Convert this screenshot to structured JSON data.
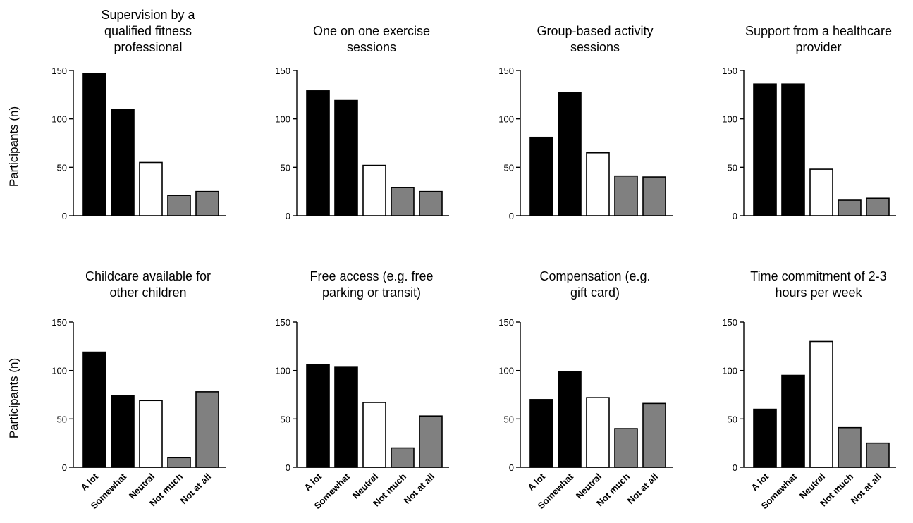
{
  "ylabel": "Participants (n)",
  "categories": [
    "A lot",
    "Somewhat",
    "Neutral",
    "Not much",
    "Not at all"
  ],
  "colors": {
    "A lot": "#000000",
    "Somewhat": "#000000",
    "Neutral": "#ffffff",
    "Not much": "#808080",
    "Not at all": "#808080"
  },
  "chart_data": [
    {
      "type": "bar",
      "title": "Supervision by a qualified fitness professional",
      "title_lines": [
        "Supervision by a",
        "qualified fitness",
        "professional"
      ],
      "categories": [
        "A lot",
        "Somewhat",
        "Neutral",
        "Not much",
        "Not at all"
      ],
      "values": [
        147,
        110,
        55,
        21,
        25
      ],
      "ylim": [
        0,
        150
      ],
      "yticks": [
        0,
        50,
        100,
        150
      ]
    },
    {
      "type": "bar",
      "title": "One on one exercise sessions",
      "title_lines": [
        "One on one exercise",
        "sessions"
      ],
      "categories": [
        "A lot",
        "Somewhat",
        "Neutral",
        "Not much",
        "Not at all"
      ],
      "values": [
        129,
        119,
        52,
        29,
        25
      ],
      "ylim": [
        0,
        150
      ],
      "yticks": [
        0,
        50,
        100,
        150
      ]
    },
    {
      "type": "bar",
      "title": "Group-based activity sessions",
      "title_lines": [
        "Group-based activity",
        "sessions"
      ],
      "categories": [
        "A lot",
        "Somewhat",
        "Neutral",
        "Not much",
        "Not at all"
      ],
      "values": [
        81,
        127,
        65,
        41,
        40
      ],
      "ylim": [
        0,
        150
      ],
      "yticks": [
        0,
        50,
        100,
        150
      ]
    },
    {
      "type": "bar",
      "title": "Support from a healthcare provider",
      "title_lines": [
        "Support from a healthcare",
        "provider"
      ],
      "categories": [
        "A lot",
        "Somewhat",
        "Neutral",
        "Not much",
        "Not at all"
      ],
      "values": [
        136,
        136,
        48,
        16,
        18
      ],
      "ylim": [
        0,
        150
      ],
      "yticks": [
        0,
        50,
        100,
        150
      ]
    },
    {
      "type": "bar",
      "title": "Childcare available for other children",
      "title_lines": [
        "Childcare available for",
        "other children"
      ],
      "categories": [
        "A lot",
        "Somewhat",
        "Neutral",
        "Not much",
        "Not at all"
      ],
      "values": [
        119,
        74,
        69,
        10,
        78
      ],
      "ylim": [
        0,
        150
      ],
      "yticks": [
        0,
        50,
        100,
        150
      ]
    },
    {
      "type": "bar",
      "title": "Free access (e.g. free parking or transit)",
      "title_lines": [
        "Free access (e.g. free",
        "parking or transit)"
      ],
      "categories": [
        "A lot",
        "Somewhat",
        "Neutral",
        "Not much",
        "Not at all"
      ],
      "values": [
        106,
        104,
        67,
        20,
        53
      ],
      "ylim": [
        0,
        150
      ],
      "yticks": [
        0,
        50,
        100,
        150
      ]
    },
    {
      "type": "bar",
      "title": "Compensation (e.g. gift card)",
      "title_lines": [
        "Compensation (e.g.",
        "gift card)"
      ],
      "categories": [
        "A lot",
        "Somewhat",
        "Neutral",
        "Not much",
        "Not at all"
      ],
      "values": [
        70,
        99,
        72,
        40,
        66
      ],
      "ylim": [
        0,
        150
      ],
      "yticks": [
        0,
        50,
        100,
        150
      ]
    },
    {
      "type": "bar",
      "title": "Time commitment of 2-3 hours per week",
      "title_lines": [
        "Time commitment of 2-3",
        "hours per week"
      ],
      "categories": [
        "A lot",
        "Somewhat",
        "Neutral",
        "Not much",
        "Not at all"
      ],
      "values": [
        60,
        95,
        130,
        41,
        25
      ],
      "ylim": [
        0,
        150
      ],
      "yticks": [
        0,
        50,
        100,
        150
      ]
    }
  ]
}
